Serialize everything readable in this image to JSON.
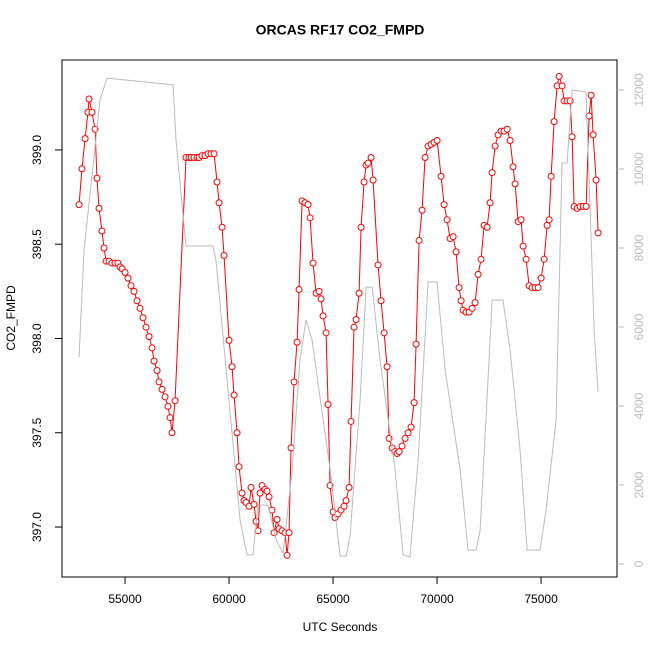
{
  "chart_data": {
    "type": "line",
    "title": "ORCAS RF17 CO2_FMPD",
    "xlabel": "UTC Seconds",
    "ylabel": "CO2_FMPD",
    "xlim": [
      51970,
      78650
    ],
    "ylim": [
      396.735,
      399.477
    ],
    "y2lim": [
      -329,
      12759
    ],
    "xticks": [
      55000,
      60000,
      65000,
      70000,
      75000
    ],
    "yticks": [
      {
        "value": 397.0,
        "label": "397.0"
      },
      {
        "value": 397.5,
        "label": "397.5"
      },
      {
        "value": 398.0,
        "label": "398.0"
      },
      {
        "value": 398.5,
        "label": "398.5"
      },
      {
        "value": 399.0,
        "label": "399.0"
      }
    ],
    "y2ticks": [
      0,
      2000,
      4000,
      6000,
      8000,
      10000,
      12000
    ],
    "y2tick_color": "#bbbbbb",
    "series": [
      {
        "color": "#ff0000",
        "marker": "circle",
        "x": [
          52790,
          52930,
          53080,
          53220,
          53270,
          53410,
          53560,
          53650,
          53750,
          53890,
          53990,
          54090,
          54230,
          54370,
          54520,
          54660,
          54760,
          54860,
          55000,
          55144,
          55288,
          55433,
          55577,
          55721,
          55865,
          56010,
          56154,
          56298,
          56394,
          56539,
          56635,
          56779,
          56923,
          57067,
          57164,
          57260,
          57404,
          57933,
          58077,
          58173,
          58318,
          58462,
          58558,
          58702,
          58846,
          58990,
          59135,
          59279,
          59423,
          59520,
          59664,
          59760,
          60000,
          60145,
          60241,
          60385,
          60481,
          60625,
          60722,
          60818,
          60962,
          61058,
          61202,
          61298,
          61394,
          61491,
          61587,
          61731,
          61827,
          61923,
          62068,
          62164,
          62308,
          62404,
          62549,
          62693,
          62789,
          62885,
          62981,
          63126,
          63270,
          63366,
          63510,
          63654,
          63799,
          63895,
          64039,
          64183,
          64328,
          64424,
          64520,
          64664,
          64760,
          64856,
          65001,
          65097,
          65241,
          65385,
          65530,
          65626,
          65770,
          65866,
          66010,
          66107,
          66251,
          66347,
          66491,
          66587,
          66683,
          66828,
          66924,
          67164,
          67308,
          67453,
          67597,
          67693,
          67837,
          67982,
          68078,
          68174,
          68318,
          68462,
          68607,
          68751,
          68895,
          68991,
          69136,
          69280,
          69424,
          69568,
          69712,
          69857,
          70001,
          70193,
          70338,
          70482,
          70626,
          70770,
          70914,
          71059,
          71155,
          71251,
          71395,
          71539,
          71684,
          71828,
          71972,
          72116,
          72261,
          72405,
          72549,
          72645,
          72790,
          72934,
          73078,
          73222,
          73367,
          73511,
          73655,
          73751,
          73896,
          74040,
          74136,
          74281,
          74425,
          74569,
          74713,
          74858,
          75002,
          75146,
          75290,
          75387,
          75483,
          75627,
          75771,
          75867,
          76011,
          76107,
          76251,
          76396,
          76492,
          76588,
          76732,
          76876,
          77021,
          77165,
          77309,
          77405,
          77501,
          77646,
          77742
        ],
        "values": [
          398.71,
          398.9,
          399.06,
          399.2,
          399.27,
          399.2,
          399.11,
          398.85,
          398.69,
          398.57,
          398.48,
          398.41,
          398.41,
          398.4,
          398.4,
          398.4,
          398.38,
          398.37,
          398.35,
          398.32,
          398.28,
          398.25,
          398.2,
          398.16,
          398.11,
          398.06,
          398.01,
          397.95,
          397.88,
          397.83,
          397.77,
          397.73,
          397.69,
          397.64,
          397.58,
          397.5,
          397.67,
          398.96,
          398.96,
          398.96,
          398.96,
          398.96,
          398.96,
          398.97,
          398.97,
          398.98,
          398.98,
          398.98,
          398.83,
          398.72,
          398.59,
          398.44,
          397.99,
          397.85,
          397.7,
          397.5,
          397.32,
          397.18,
          397.14,
          397.13,
          397.11,
          397.21,
          397.12,
          397.03,
          396.98,
          397.18,
          397.22,
          397.2,
          397.19,
          397.16,
          397.09,
          396.97,
          397.04,
          396.99,
          396.98,
          396.97,
          396.85,
          396.97,
          397.42,
          397.77,
          397.98,
          398.26,
          398.73,
          398.72,
          398.71,
          398.64,
          398.4,
          398.24,
          398.25,
          398.21,
          398.12,
          398.03,
          397.65,
          397.22,
          397.08,
          397.05,
          397.07,
          397.09,
          397.11,
          397.14,
          397.21,
          397.56,
          398.06,
          398.1,
          398.24,
          398.59,
          398.83,
          398.92,
          398.93,
          398.96,
          398.84,
          398.39,
          398.2,
          398.03,
          397.85,
          397.47,
          397.42,
          397.4,
          397.39,
          397.4,
          397.43,
          397.47,
          397.5,
          397.53,
          397.66,
          397.97,
          398.52,
          398.68,
          398.96,
          399.02,
          399.03,
          399.04,
          399.05,
          398.86,
          398.71,
          398.63,
          398.53,
          398.54,
          398.46,
          398.27,
          398.2,
          398.15,
          398.14,
          398.14,
          398.16,
          398.19,
          398.34,
          398.42,
          398.6,
          398.59,
          398.72,
          398.88,
          399.02,
          399.08,
          399.1,
          399.1,
          399.11,
          399.05,
          398.91,
          398.82,
          398.62,
          398.63,
          398.49,
          398.42,
          398.28,
          398.27,
          398.27,
          398.27,
          398.32,
          398.42,
          398.6,
          398.63,
          398.86,
          399.15,
          399.34,
          399.39,
          399.34,
          399.26,
          399.26,
          399.26,
          399.07,
          398.7,
          398.69,
          398.7,
          398.7,
          398.7,
          399.18,
          399.29,
          399.08,
          398.84,
          398.56
        ]
      },
      {
        "color": "#bbbbbb",
        "axis": "y2",
        "x": [
          52790,
          53030,
          53800,
          54130,
          57310,
          57450,
          57930,
          59230,
          59380,
          60530,
          60870,
          61150,
          61390,
          61880,
          62260,
          62600,
          63030,
          63410,
          63700,
          63990,
          64860,
          65340,
          65630,
          65820,
          66300,
          66590,
          66880,
          67260,
          67980,
          68370,
          68700,
          69090,
          69570,
          70000,
          70390,
          71110,
          71490,
          71880,
          72070,
          72650,
          73170,
          73510,
          73990,
          74330,
          74950,
          75240,
          75720,
          76010,
          76250,
          76490,
          77160,
          77360,
          77550,
          77740
        ],
        "values": [
          5240,
          7950,
          11750,
          12300,
          12130,
          10740,
          8050,
          8050,
          7650,
          1110,
          230,
          230,
          1490,
          1490,
          610,
          280,
          2380,
          5170,
          6180,
          5670,
          2380,
          200,
          200,
          730,
          4150,
          7010,
          7010,
          5170,
          2380,
          230,
          180,
          2630,
          7140,
          7140,
          4910,
          2380,
          350,
          350,
          860,
          6680,
          6680,
          5420,
          2890,
          350,
          350,
          1370,
          3650,
          10150,
          10150,
          12000,
          11950,
          8960,
          5920,
          4360
        ]
      }
    ]
  }
}
